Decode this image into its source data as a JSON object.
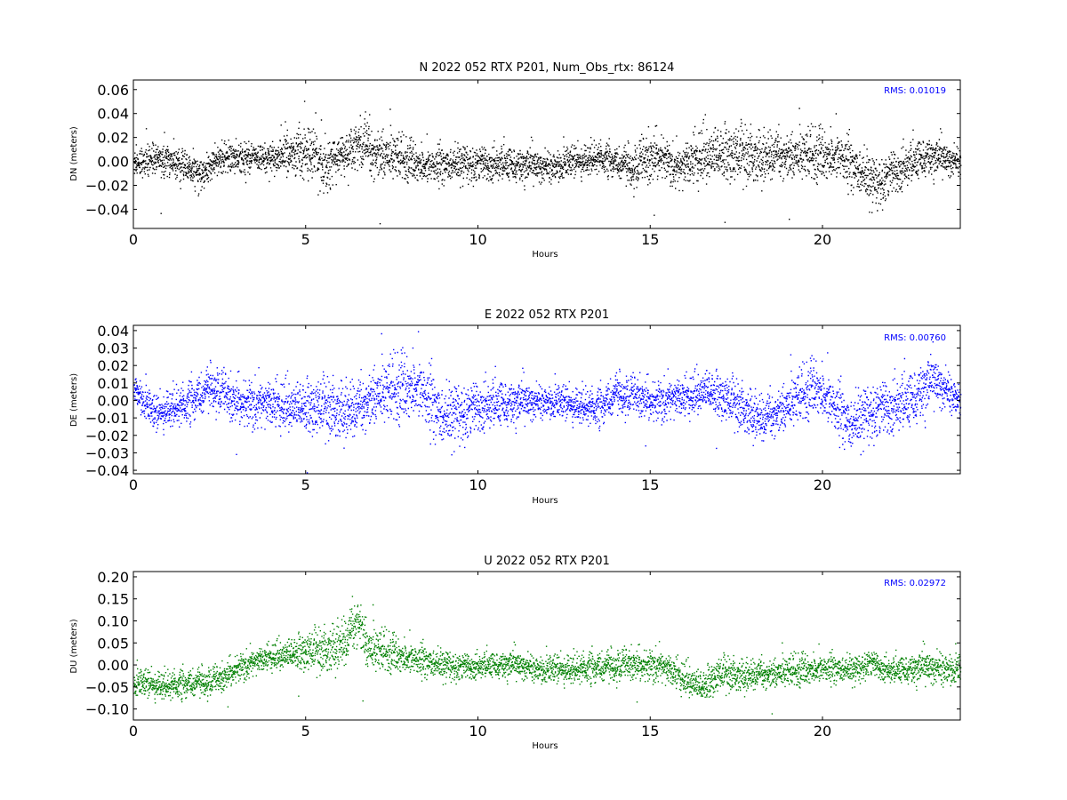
{
  "chart_data": [
    {
      "type": "scatter",
      "title": "N 2022 052 RTX  P201, Num_Obs_rtx: 86124",
      "xlabel": "Hours",
      "ylabel": "DN (meters)",
      "xlim": [
        0,
        24
      ],
      "ylim": [
        -0.056,
        0.068
      ],
      "xticks": [
        0,
        5,
        10,
        15,
        20
      ],
      "xtick_labels": [
        "0",
        "5",
        "10",
        "15",
        "20"
      ],
      "yticks": [
        -0.04,
        -0.02,
        0.0,
        0.02,
        0.04,
        0.06
      ],
      "ytick_labels": [
        "−0.04",
        "−0.02",
        "0.00",
        "0.02",
        "0.04",
        "0.06"
      ],
      "series_color": "#000000",
      "annotation": "RMS:  0.01019",
      "annotation_color": "#0000ff",
      "trend": [
        [
          0,
          0.0
        ],
        [
          1,
          0.002
        ],
        [
          2,
          -0.01
        ],
        [
          2.5,
          0.003
        ],
        [
          4,
          0.003
        ],
        [
          5,
          0.01
        ],
        [
          5.5,
          -0.002
        ],
        [
          6.5,
          0.012
        ],
        [
          7.5,
          0.005
        ],
        [
          8.5,
          -0.004
        ],
        [
          10,
          0.0
        ],
        [
          12,
          -0.004
        ],
        [
          13.5,
          0.004
        ],
        [
          14.5,
          -0.005
        ],
        [
          15.3,
          0.006
        ],
        [
          15.8,
          -0.006
        ],
        [
          16.5,
          0.006
        ],
        [
          19,
          0.006
        ],
        [
          20.5,
          0.004
        ],
        [
          21.5,
          -0.018
        ],
        [
          22,
          -0.008
        ],
        [
          23,
          0.005
        ],
        [
          24,
          0.0
        ]
      ],
      "spread": [
        [
          0,
          0.008
        ],
        [
          4,
          0.008
        ],
        [
          5.2,
          0.016
        ],
        [
          6,
          0.01
        ],
        [
          6.8,
          0.016
        ],
        [
          8,
          0.01
        ],
        [
          14,
          0.008
        ],
        [
          15,
          0.014
        ],
        [
          15.5,
          0.01
        ],
        [
          16.5,
          0.016
        ],
        [
          19,
          0.013
        ],
        [
          21.5,
          0.013
        ],
        [
          24,
          0.008
        ]
      ]
    },
    {
      "type": "scatter",
      "title": "E 2022 052 RTX  P201",
      "xlabel": "Hours",
      "ylabel": "DE (meters)",
      "xlim": [
        0,
        24
      ],
      "ylim": [
        -0.042,
        0.043
      ],
      "xticks": [
        0,
        5,
        10,
        15,
        20
      ],
      "xtick_labels": [
        "0",
        "5",
        "10",
        "15",
        "20"
      ],
      "yticks": [
        -0.04,
        -0.03,
        -0.02,
        -0.01,
        0.0,
        0.01,
        0.02,
        0.03,
        0.04
      ],
      "ytick_labels": [
        "−0.04",
        "−0.03",
        "−0.02",
        "−0.01",
        "0.00",
        "0.01",
        "0.02",
        "0.03",
        "0.04"
      ],
      "series_color": "#0000ff",
      "annotation": "RMS:  0.00760",
      "annotation_color": "#0000ff",
      "trend": [
        [
          0,
          0.008
        ],
        [
          0.6,
          -0.008
        ],
        [
          1,
          -0.004
        ],
        [
          1.5,
          -0.002
        ],
        [
          2.3,
          0.008
        ],
        [
          2.8,
          0.0
        ],
        [
          4,
          -0.002
        ],
        [
          5,
          -0.004
        ],
        [
          6.5,
          -0.004
        ],
        [
          7,
          0.004
        ],
        [
          8.2,
          0.008
        ],
        [
          9,
          -0.01
        ],
        [
          10,
          -0.002
        ],
        [
          12,
          0.0
        ],
        [
          13.5,
          -0.004
        ],
        [
          14,
          0.004
        ],
        [
          15,
          0.0
        ],
        [
          16,
          0.002
        ],
        [
          16.6,
          0.006
        ],
        [
          17.5,
          -0.002
        ],
        [
          18.3,
          -0.01
        ],
        [
          19,
          -0.002
        ],
        [
          19.8,
          0.008
        ],
        [
          20.8,
          -0.014
        ],
        [
          21.5,
          -0.004
        ],
        [
          22.5,
          0.0
        ],
        [
          23.2,
          0.012
        ],
        [
          24,
          0.0
        ]
      ],
      "spread": [
        [
          0,
          0.006
        ],
        [
          5,
          0.01
        ],
        [
          8.5,
          0.012
        ],
        [
          12,
          0.006
        ],
        [
          16.5,
          0.008
        ],
        [
          20.8,
          0.01
        ],
        [
          23,
          0.01
        ],
        [
          24,
          0.006
        ]
      ]
    },
    {
      "type": "scatter",
      "title": "U 2022 052 RTX  P201",
      "xlabel": "Hours",
      "ylabel": "DU (meters)",
      "xlim": [
        0,
        24
      ],
      "ylim": [
        -0.125,
        0.212
      ],
      "xticks": [
        0,
        5,
        10,
        15,
        20
      ],
      "xtick_labels": [
        "0",
        "5",
        "10",
        "15",
        "20"
      ],
      "yticks": [
        -0.1,
        -0.05,
        0.0,
        0.05,
        0.1,
        0.15,
        0.2
      ],
      "ytick_labels": [
        "−0.10",
        "−0.05",
        "0.00",
        "0.05",
        "0.10",
        "0.15",
        "0.20"
      ],
      "series_color": "#008000",
      "annotation": "RMS:  0.02972",
      "annotation_color": "#0000ff",
      "trend": [
        [
          0,
          -0.04
        ],
        [
          1,
          -0.045
        ],
        [
          2.5,
          -0.035
        ],
        [
          3,
          -0.005
        ],
        [
          4,
          0.02
        ],
        [
          4.5,
          0.025
        ],
        [
          5.5,
          0.035
        ],
        [
          6.2,
          0.06
        ],
        [
          6.5,
          0.11
        ],
        [
          6.8,
          0.04
        ],
        [
          8,
          0.015
        ],
        [
          9,
          0.0
        ],
        [
          10,
          0.0
        ],
        [
          11,
          0.002
        ],
        [
          12,
          -0.01
        ],
        [
          13.5,
          -0.004
        ],
        [
          14.5,
          0.0
        ],
        [
          15.2,
          0.002
        ],
        [
          16,
          -0.03
        ],
        [
          16.5,
          -0.05
        ],
        [
          17,
          -0.02
        ],
        [
          18,
          -0.02
        ],
        [
          20,
          -0.008
        ],
        [
          21,
          -0.01
        ],
        [
          21.3,
          0.01
        ],
        [
          22,
          -0.012
        ],
        [
          23,
          -0.004
        ],
        [
          24,
          -0.008
        ]
      ],
      "spread": [
        [
          0,
          0.02
        ],
        [
          4,
          0.02
        ],
        [
          6.5,
          0.04
        ],
        [
          7.5,
          0.025
        ],
        [
          10,
          0.018
        ],
        [
          16.5,
          0.025
        ],
        [
          22,
          0.018
        ],
        [
          23.5,
          0.025
        ],
        [
          24,
          0.02
        ]
      ]
    }
  ]
}
